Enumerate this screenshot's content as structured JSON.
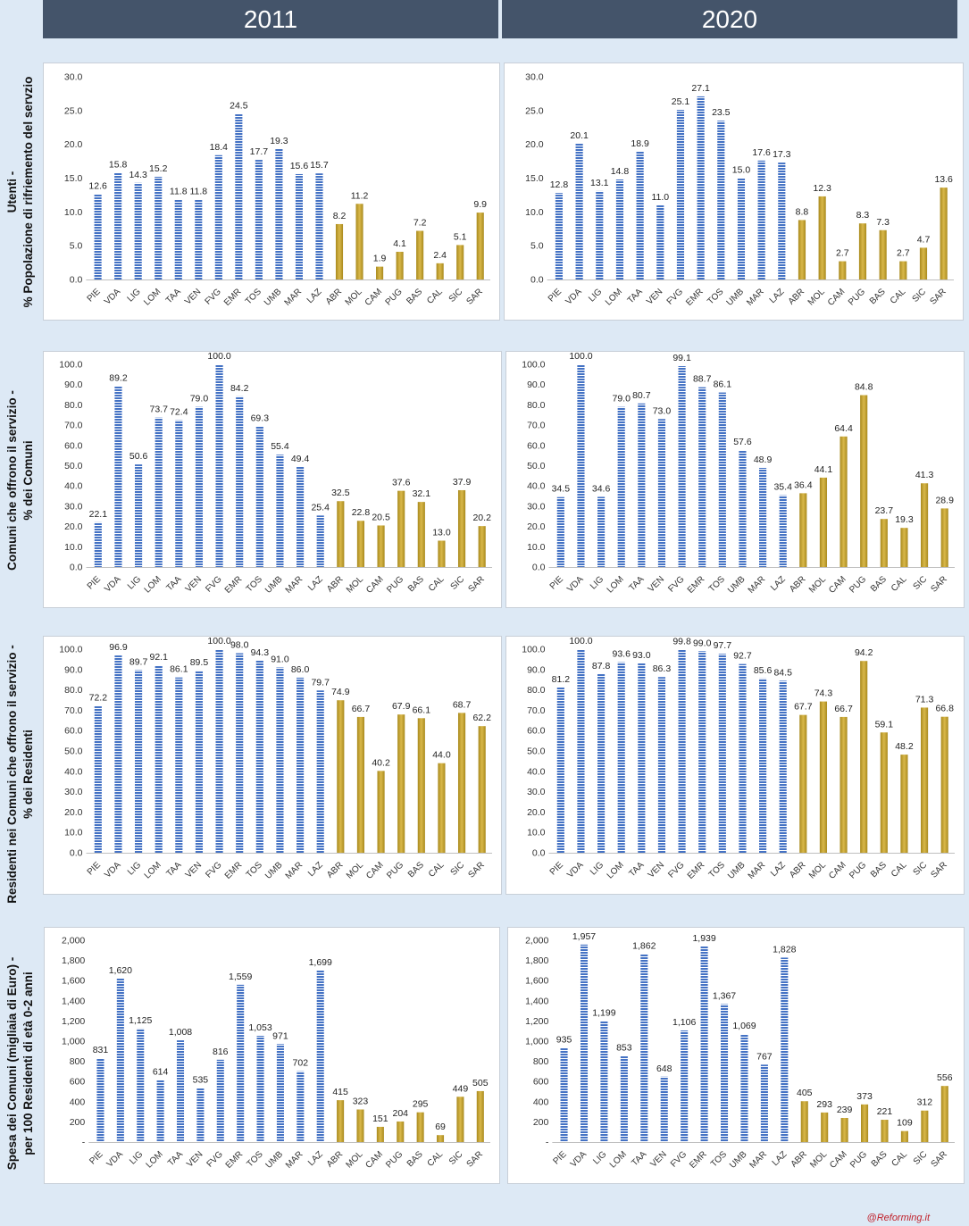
{
  "headers": [
    "2011",
    "2020"
  ],
  "row_labels": [
    [
      "Utenti -",
      "% Popolazione di rifriemento del servzio"
    ],
    [
      "Comuni che offrono il servizio -",
      "% dei Comuni"
    ],
    [
      "Residenti nei Comuni che offrono il servizio -",
      "% dei Residenti"
    ],
    [
      "Spesa dei Comuni (migliaia di Euro) -",
      "per 100 Residenti di età 0-2 anni"
    ]
  ],
  "footer": "@Reforming.it",
  "colors": {
    "north_bars": "#4472c4",
    "south_bars": "#c9a227",
    "header_bg": "#44546a",
    "page_bg": "#dde9f5"
  },
  "chart_data": [
    {
      "type": "bar",
      "year": "2011",
      "row": 0,
      "categories": [
        "PIE",
        "VDA",
        "LIG",
        "LOM",
        "TAA",
        "VEN",
        "FVG",
        "EMR",
        "TOS",
        "UMB",
        "MAR",
        "LAZ",
        "ABR",
        "MOL",
        "CAM",
        "PUG",
        "BAS",
        "CAL",
        "SIC",
        "SAR"
      ],
      "values": [
        12.6,
        15.8,
        14.3,
        15.2,
        11.8,
        11.8,
        18.4,
        24.5,
        17.7,
        19.3,
        15.6,
        15.7,
        8.2,
        11.2,
        1.9,
        4.1,
        7.2,
        2.4,
        5.1,
        9.9
      ],
      "ylim": [
        0,
        30
      ],
      "yticks": [
        "0.0",
        "5.0",
        "10.0",
        "15.0",
        "20.0",
        "25.0",
        "30.0"
      ],
      "decimals": 1
    },
    {
      "type": "bar",
      "year": "2020",
      "row": 0,
      "categories": [
        "PIE",
        "VDA",
        "LIG",
        "LOM",
        "TAA",
        "VEN",
        "FVG",
        "EMR",
        "TOS",
        "UMB",
        "MAR",
        "LAZ",
        "ABR",
        "MOL",
        "CAM",
        "PUG",
        "BAS",
        "CAL",
        "SIC",
        "SAR"
      ],
      "values": [
        12.8,
        20.1,
        13.1,
        14.8,
        18.9,
        11.0,
        25.1,
        27.1,
        23.5,
        15.0,
        17.6,
        17.3,
        8.8,
        12.3,
        2.7,
        8.3,
        7.3,
        2.7,
        4.7,
        13.6
      ],
      "ylim": [
        0,
        30
      ],
      "yticks": [
        "0.0",
        "5.0",
        "10.0",
        "15.0",
        "20.0",
        "25.0",
        "30.0"
      ],
      "decimals": 1
    },
    {
      "type": "bar",
      "year": "2011",
      "row": 1,
      "categories": [
        "PIE",
        "VDA",
        "LIG",
        "LOM",
        "TAA",
        "VEN",
        "FVG",
        "EMR",
        "TOS",
        "UMB",
        "MAR",
        "LAZ",
        "ABR",
        "MOL",
        "CAM",
        "PUG",
        "BAS",
        "CAL",
        "SIC",
        "SAR"
      ],
      "values": [
        22.1,
        89.2,
        50.6,
        73.7,
        72.4,
        79.0,
        100.0,
        84.2,
        69.3,
        55.4,
        49.4,
        25.4,
        32.5,
        22.8,
        20.5,
        37.6,
        32.1,
        13.0,
        37.9,
        20.2
      ],
      "ylim": [
        0,
        100
      ],
      "yticks": [
        "0.0",
        "10.0",
        "20.0",
        "30.0",
        "40.0",
        "50.0",
        "60.0",
        "70.0",
        "80.0",
        "90.0",
        "100.0"
      ],
      "decimals": 1
    },
    {
      "type": "bar",
      "year": "2020",
      "row": 1,
      "categories": [
        "PIE",
        "VDA",
        "LIG",
        "LOM",
        "TAA",
        "VEN",
        "FVG",
        "EMR",
        "TOS",
        "UMB",
        "MAR",
        "LAZ",
        "ABR",
        "MOL",
        "CAM",
        "PUG",
        "BAS",
        "CAL",
        "SIC",
        "SAR"
      ],
      "values": [
        34.5,
        100.0,
        34.6,
        79.0,
        80.7,
        73.0,
        99.1,
        88.7,
        86.1,
        57.6,
        48.9,
        35.4,
        36.4,
        44.1,
        64.4,
        84.8,
        23.7,
        19.3,
        41.3,
        28.9
      ],
      "ylim": [
        0,
        100
      ],
      "yticks": [
        "0.0",
        "10.0",
        "20.0",
        "30.0",
        "40.0",
        "50.0",
        "60.0",
        "70.0",
        "80.0",
        "90.0",
        "100.0"
      ],
      "decimals": 1
    },
    {
      "type": "bar",
      "year": "2011",
      "row": 2,
      "categories": [
        "PIE",
        "VDA",
        "LIG",
        "LOM",
        "TAA",
        "VEN",
        "FVG",
        "EMR",
        "TOS",
        "UMB",
        "MAR",
        "LAZ",
        "ABR",
        "MOL",
        "CAM",
        "PUG",
        "BAS",
        "CAL",
        "SIC",
        "SAR"
      ],
      "values": [
        72.2,
        96.9,
        89.7,
        92.1,
        86.1,
        89.5,
        100.0,
        98.0,
        94.3,
        91.0,
        86.0,
        79.7,
        74.9,
        66.7,
        40.2,
        67.9,
        66.1,
        44.0,
        68.7,
        62.2
      ],
      "ylim": [
        0,
        100
      ],
      "yticks": [
        "0.0",
        "10.0",
        "20.0",
        "30.0",
        "40.0",
        "50.0",
        "60.0",
        "70.0",
        "80.0",
        "90.0",
        "100.0"
      ],
      "decimals": 1
    },
    {
      "type": "bar",
      "year": "2020",
      "row": 2,
      "categories": [
        "PIE",
        "VDA",
        "LIG",
        "LOM",
        "TAA",
        "VEN",
        "FVG",
        "EMR",
        "TOS",
        "UMB",
        "MAR",
        "LAZ",
        "ABR",
        "MOL",
        "CAM",
        "PUG",
        "BAS",
        "CAL",
        "SIC",
        "SAR"
      ],
      "values": [
        81.2,
        100.0,
        87.8,
        93.6,
        93.0,
        86.3,
        99.8,
        99.0,
        97.7,
        92.7,
        85.6,
        84.5,
        67.7,
        74.3,
        66.7,
        94.2,
        59.1,
        48.2,
        71.3,
        66.8
      ],
      "ylim": [
        0,
        100
      ],
      "yticks": [
        "0.0",
        "10.0",
        "20.0",
        "30.0",
        "40.0",
        "50.0",
        "60.0",
        "70.0",
        "80.0",
        "90.0",
        "100.0"
      ],
      "decimals": 1
    },
    {
      "type": "bar",
      "year": "2011",
      "row": 3,
      "categories": [
        "PIE",
        "VDA",
        "LIG",
        "LOM",
        "TAA",
        "VEN",
        "FVG",
        "EMR",
        "TOS",
        "UMB",
        "MAR",
        "LAZ",
        "ABR",
        "MOL",
        "CAM",
        "PUG",
        "BAS",
        "CAL",
        "SIC",
        "SAR"
      ],
      "values": [
        831,
        1620,
        1125,
        614,
        1008,
        535,
        816,
        1559,
        1053,
        971,
        702,
        1699,
        415,
        323,
        151,
        204,
        295,
        69,
        449,
        505
      ],
      "ylim": [
        0,
        2000
      ],
      "yticks": [
        "-",
        "200",
        "400",
        "600",
        "800",
        "1,000",
        "1,200",
        "1,400",
        "1,600",
        "1,800",
        "2,000"
      ],
      "decimals": 0
    },
    {
      "type": "bar",
      "year": "2020",
      "row": 3,
      "categories": [
        "PIE",
        "VDA",
        "LIG",
        "LOM",
        "TAA",
        "VEN",
        "FVG",
        "EMR",
        "TOS",
        "UMB",
        "MAR",
        "LAZ",
        "ABR",
        "MOL",
        "CAM",
        "PUG",
        "BAS",
        "CAL",
        "SIC",
        "SAR"
      ],
      "values": [
        935,
        1957,
        1199,
        853,
        1862,
        648,
        1106,
        1939,
        1367,
        1069,
        767,
        1828,
        405,
        293,
        239,
        373,
        221,
        109,
        312,
        556
      ],
      "ylim": [
        0,
        2000
      ],
      "yticks": [
        "-",
        "200",
        "400",
        "600",
        "800",
        "1,000",
        "1,200",
        "1,400",
        "1,600",
        "1,800",
        "2,000"
      ],
      "decimals": 0
    }
  ]
}
